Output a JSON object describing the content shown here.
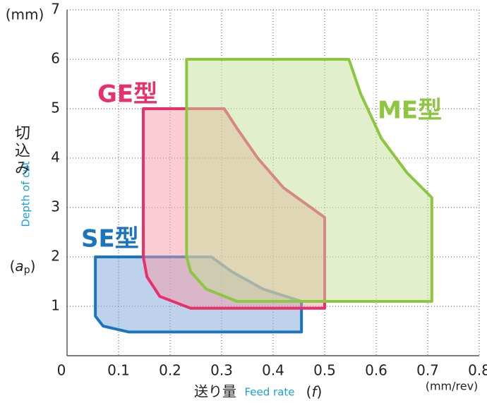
{
  "chart_data": {
    "type": "area",
    "y_unit": "(mm)",
    "y_label": "切込み",
    "y_label_en": "Depth of cut",
    "y_label_symbol": [
      "(",
      "a",
      "p",
      ")"
    ],
    "x_label": "送り量",
    "x_label_en": "Feed rate",
    "x_label_symbol": [
      "(",
      "f",
      ")"
    ],
    "x_unit": "(mm/rev)",
    "xlim": [
      0,
      0.8
    ],
    "xticks": [
      0,
      0.1,
      0.2,
      0.3,
      0.4,
      0.5,
      0.6,
      0.7,
      0.8
    ],
    "ylim": [
      0,
      7
    ],
    "yticks": [
      1,
      2,
      3,
      4,
      5,
      6,
      7
    ],
    "grid": true,
    "series": [
      {
        "name": "SE型",
        "color": "#1a75bc",
        "fill": "#7fa6d8",
        "x": [
          0.055,
          0.28,
          0.32,
          0.38,
          0.455,
          0.455,
          0.12,
          0.07,
          0.055
        ],
        "values": [
          2.0,
          2.0,
          1.7,
          1.35,
          1.1,
          0.48,
          0.48,
          0.6,
          0.8
        ]
      },
      {
        "name": "GE型",
        "color": "#e8306b",
        "fill": "#f59aa8",
        "x": [
          0.148,
          0.305,
          0.33,
          0.37,
          0.42,
          0.5,
          0.5,
          0.24,
          0.18,
          0.155,
          0.148
        ],
        "values": [
          5,
          5,
          4.6,
          4.0,
          3.4,
          2.8,
          0.96,
          0.96,
          1.2,
          1.6,
          2.0
        ]
      },
      {
        "name": "ME型",
        "color": "#8dc63f",
        "fill": "#c3e09a",
        "x": [
          0.232,
          0.547,
          0.57,
          0.61,
          0.66,
          0.708,
          0.708,
          0.33,
          0.27,
          0.24,
          0.232
        ],
        "values": [
          6,
          6,
          5.3,
          4.4,
          3.7,
          3.2,
          1.1,
          1.1,
          1.35,
          1.7,
          2.0
        ]
      }
    ]
  }
}
